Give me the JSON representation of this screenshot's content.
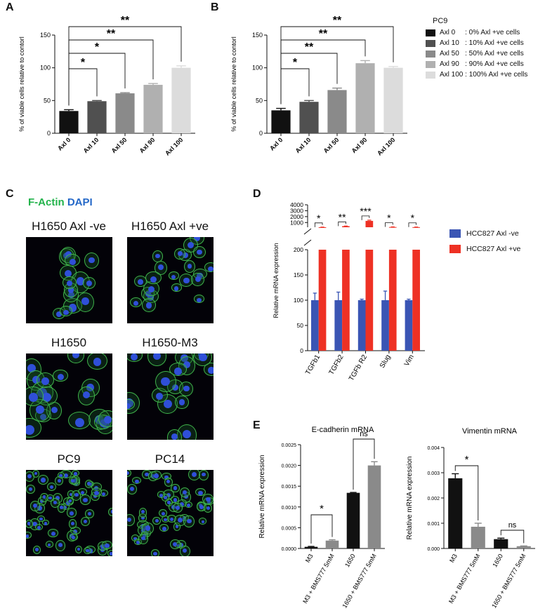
{
  "panel_letters": {
    "A": "A",
    "B": "B",
    "C": "C",
    "D": "D",
    "E": "E"
  },
  "legend_ab": {
    "title": "PC9",
    "items": [
      {
        "label": "Axl 0     : 0% Axl +ve cells",
        "color": "#111111"
      },
      {
        "label": "Axl 10   : 10% Axl +ve cells",
        "color": "#505050"
      },
      {
        "label": "Axl 50   : 50% Axl +ve cells",
        "color": "#8a8a8a"
      },
      {
        "label": "Axl 90   : 90% Axl +ve cells",
        "color": "#b0b0b0"
      },
      {
        "label": "Axl 100 : 100% Axl +ve cells",
        "color": "#dcdcdc"
      }
    ]
  },
  "stain": {
    "factin": "F-Actin",
    "dapi": "DAPI",
    "factin_color": "#22b34b",
    "dapi_color": "#2468c8"
  },
  "micrographs": [
    {
      "label": "H1650  Axl -ve"
    },
    {
      "label": "H1650 Axl +ve"
    },
    {
      "label": "H1650"
    },
    {
      "label": "H1650-M3"
    },
    {
      "label": "PC9"
    },
    {
      "label": "PC14"
    }
  ],
  "legend_d": [
    {
      "label": "HCC827 Axl -ve",
      "color": "#3a55b4"
    },
    {
      "label": "HCC827 Axl +ve",
      "color": "#ee3124"
    }
  ],
  "chart_data": [
    {
      "id": "A",
      "type": "bar",
      "ylabel": "% of viable cells relative to contorl",
      "categories": [
        "Axl 0",
        "Axl 10",
        "Axl 50",
        "Axl 90",
        "Axl 100"
      ],
      "values": [
        34,
        49,
        61,
        74,
        100
      ],
      "errors": [
        2,
        1,
        1,
        2,
        3
      ],
      "colors": [
        "#111111",
        "#505050",
        "#8a8a8a",
        "#b0b0b0",
        "#dcdcdc"
      ],
      "ylim": [
        0,
        150
      ],
      "yticks": [
        "0",
        "50",
        "100",
        "150"
      ],
      "significance": [
        {
          "from": 0,
          "to": 1,
          "label": "*"
        },
        {
          "from": 0,
          "to": 2,
          "label": "*"
        },
        {
          "from": 0,
          "to": 3,
          "label": "**"
        },
        {
          "from": 0,
          "to": 4,
          "label": "**"
        }
      ]
    },
    {
      "id": "B",
      "type": "bar",
      "ylabel": "% of viable cells relative to contorl",
      "categories": [
        "Axl 0",
        "Axl 10",
        "Axl 50",
        "Axl 90",
        "Axl 100"
      ],
      "values": [
        35,
        48,
        66,
        107,
        100
      ],
      "errors": [
        3,
        2,
        3,
        4,
        2
      ],
      "colors": [
        "#111111",
        "#505050",
        "#8a8a8a",
        "#b0b0b0",
        "#dcdcdc"
      ],
      "ylim": [
        0,
        150
      ],
      "yticks": [
        "0",
        "50",
        "100",
        "150"
      ],
      "significance": [
        {
          "from": 0,
          "to": 1,
          "label": "*"
        },
        {
          "from": 0,
          "to": 2,
          "label": "**"
        },
        {
          "from": 0,
          "to": 3,
          "label": "**"
        },
        {
          "from": 0,
          "to": 4,
          "label": "**"
        }
      ]
    },
    {
      "id": "D",
      "type": "bar",
      "ylabel": "Relative mRNA expression",
      "categories": [
        "TGFb1",
        "TGFb2",
        "TGFb R2",
        "Slug",
        "Vim"
      ],
      "series": [
        {
          "name": "HCC827 Axl -ve",
          "values": [
            100,
            100,
            100,
            100,
            100
          ],
          "errors": [
            14,
            16,
            2,
            18,
            2
          ],
          "color": "#3a55b4"
        },
        {
          "name": "HCC827 Axl +ve",
          "values": [
            210,
            380,
            1280,
            240,
            220
          ],
          "errors": [
            10,
            20,
            120,
            20,
            10
          ],
          "color": "#ee3124"
        }
      ],
      "axis_break": {
        "lower": [
          0,
          200
        ],
        "upper": [
          200,
          4000
        ]
      },
      "yticks_lower": [
        "0",
        "50",
        "100",
        "150",
        "200"
      ],
      "yticks_upper": [
        "1000",
        "2000",
        "3000",
        "4000"
      ],
      "significance": [
        "*",
        "**",
        "***",
        "*",
        "*"
      ]
    },
    {
      "id": "E1",
      "type": "bar",
      "title": "E-cadherin mRNA",
      "ylabel": "Relative mRNA expression",
      "categories": [
        "M3",
        "M3 + BMS777 5mM",
        "1650",
        "1650 + BMS777 5mM"
      ],
      "values": [
        4e-05,
        0.00019,
        0.00134,
        0.002
      ],
      "errors": [
        1e-05,
        2e-05,
        1e-05,
        9e-05
      ],
      "colors": [
        "#111111",
        "#8a8a8a",
        "#111111",
        "#8a8a8a"
      ],
      "ylim": [
        0,
        0.0025
      ],
      "yticks": [
        "0.0000",
        "0.0005",
        "0.0010",
        "0.0015",
        "0.0020",
        "0.0025"
      ],
      "significance": [
        {
          "from": 0,
          "to": 1,
          "label": "*"
        },
        {
          "from": 2,
          "to": 3,
          "label": "ns"
        }
      ]
    },
    {
      "id": "E2",
      "type": "bar",
      "title": "Vimentin mRNA",
      "ylabel": "Relative mRNA expression",
      "categories": [
        "M3",
        "M3 + BMS777 5mM",
        "1650",
        "1650 + BMS777 5mM"
      ],
      "values": [
        0.00278,
        0.00086,
        0.00037,
        9e-05
      ],
      "errors": [
        0.00018,
        0.00014,
        4e-05,
        1e-05
      ],
      "colors": [
        "#111111",
        "#8a8a8a",
        "#111111",
        "#8a8a8a"
      ],
      "ylim": [
        0,
        0.004
      ],
      "yticks": [
        "0.000",
        "0.001",
        "0.002",
        "0.003",
        "0.004"
      ],
      "significance": [
        {
          "from": 0,
          "to": 1,
          "label": "*"
        },
        {
          "from": 2,
          "to": 3,
          "label": "ns"
        }
      ]
    }
  ]
}
